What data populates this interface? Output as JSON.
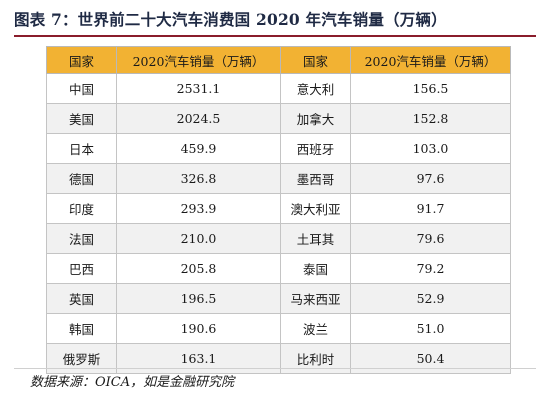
{
  "title": "图表 7：世界前二十大汽车消费国 2020 年汽车销量（万辆）",
  "table": {
    "headers": [
      "国家",
      "2020汽车销量（万辆）",
      "国家",
      "2020汽车销量（万辆）"
    ],
    "rows": [
      [
        "中国",
        "2531.1",
        "意大利",
        "156.5"
      ],
      [
        "美国",
        "2024.5",
        "加拿大",
        "152.8"
      ],
      [
        "日本",
        "459.9",
        "西班牙",
        "103.0"
      ],
      [
        "德国",
        "326.8",
        "墨西哥",
        "97.6"
      ],
      [
        "印度",
        "293.9",
        "澳大利亚",
        "91.7"
      ],
      [
        "法国",
        "210.0",
        "土耳其",
        "79.6"
      ],
      [
        "巴西",
        "205.8",
        "泰国",
        "79.2"
      ],
      [
        "英国",
        "196.5",
        "马来西亚",
        "52.9"
      ],
      [
        "韩国",
        "190.6",
        "波兰",
        "51.0"
      ],
      [
        "俄罗斯",
        "163.1",
        "比利时",
        "50.4"
      ]
    ]
  },
  "source": "数据来源：OICA，如是金融研究院",
  "colors": {
    "header_bg": "#f2b233",
    "title_color": "#1f2a44",
    "rule_color": "#8a1c2b"
  }
}
